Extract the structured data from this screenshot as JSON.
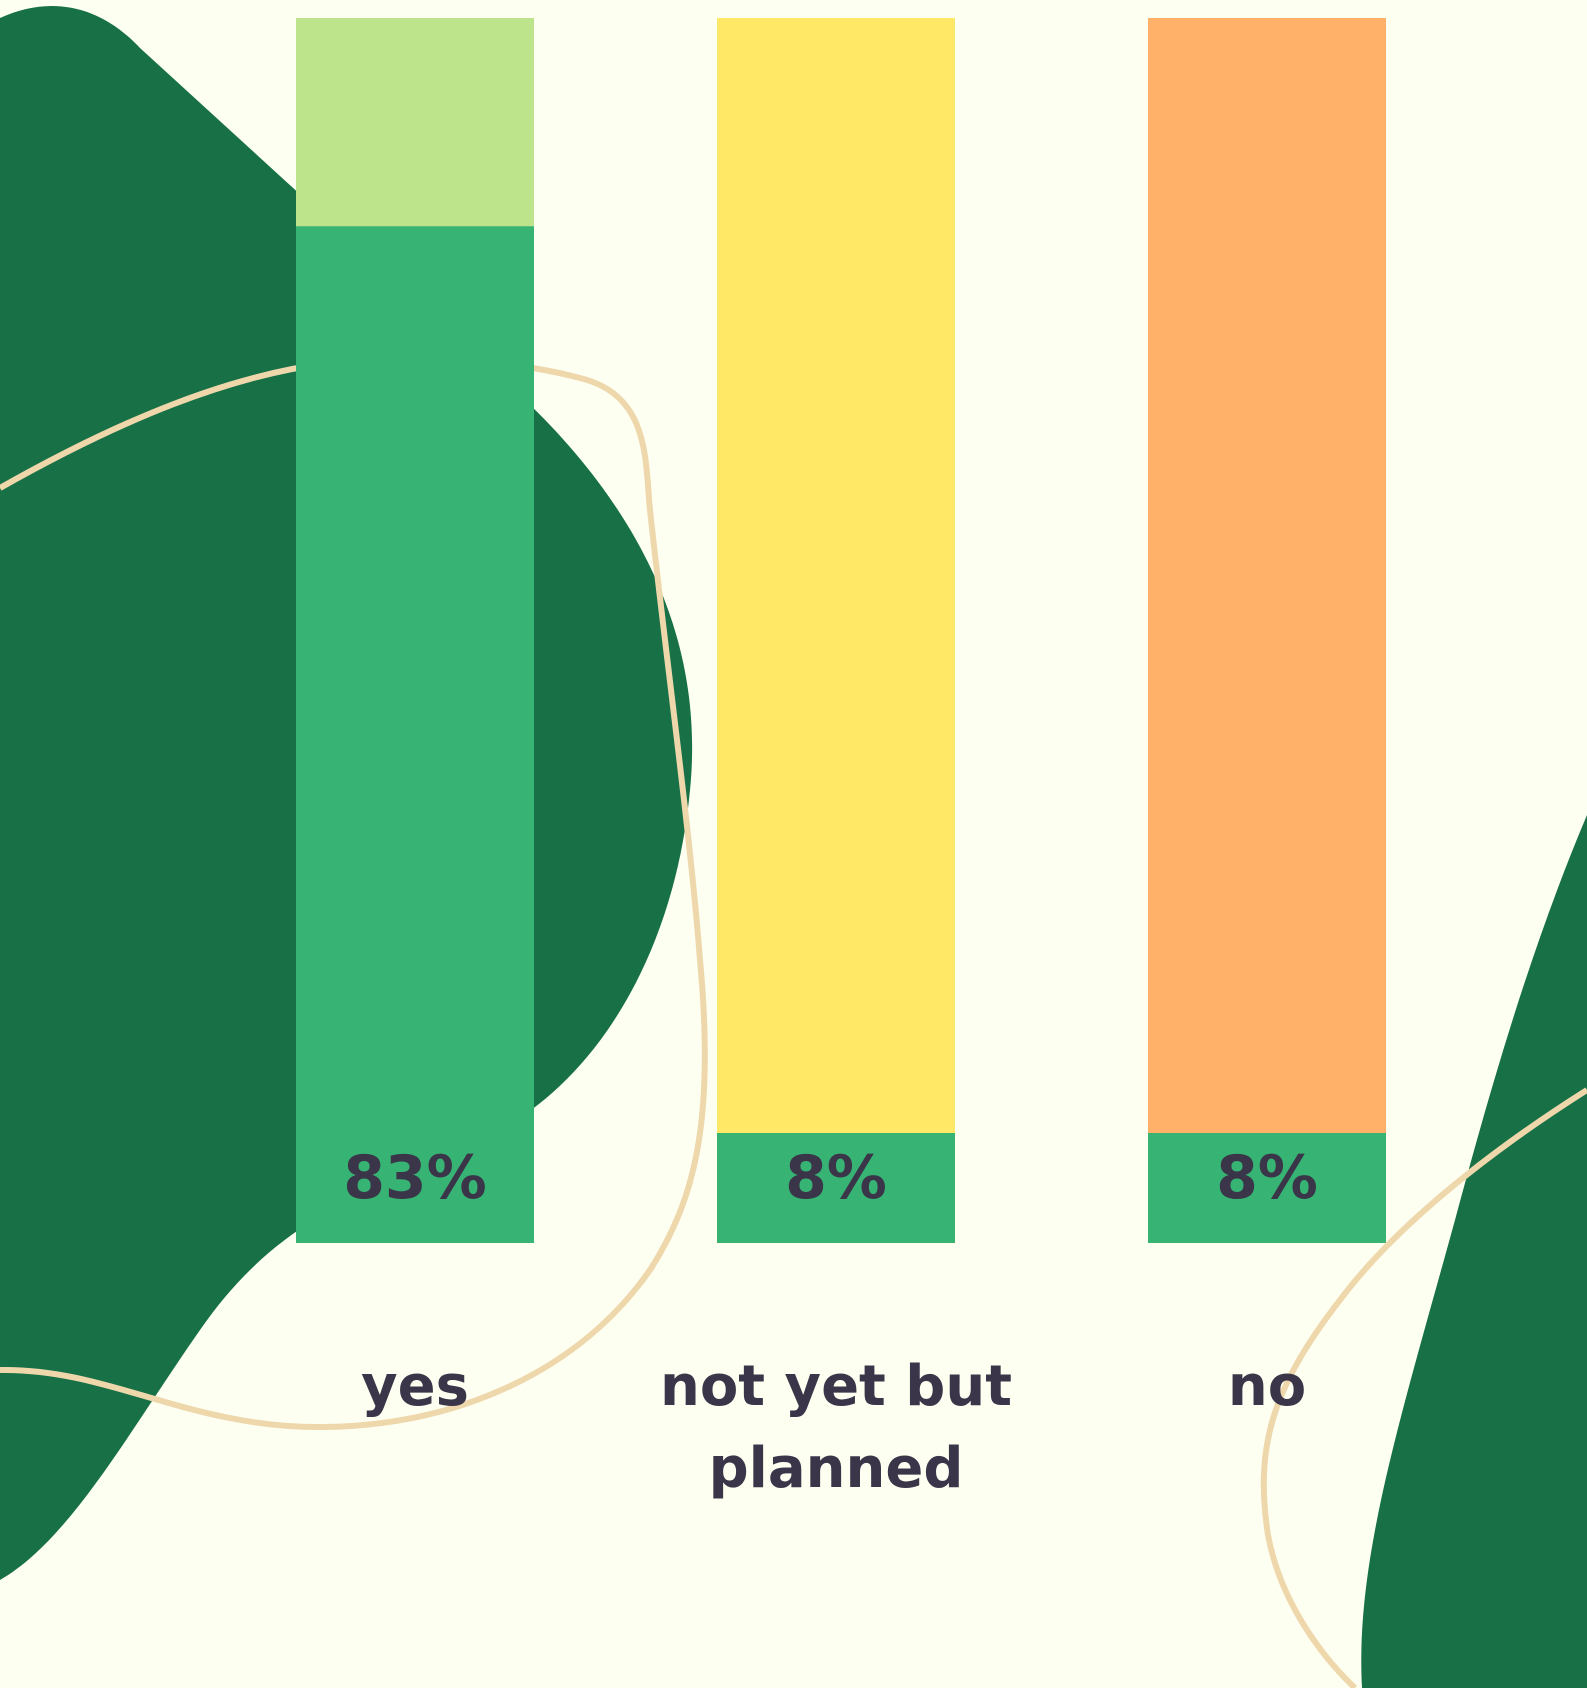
{
  "chart_data": {
    "type": "bar",
    "title": "",
    "xlabel": "",
    "ylabel": "",
    "ylim": [
      0,
      100
    ],
    "categories": [
      "yes",
      "not yet but planned",
      "no"
    ],
    "values": [
      83,
      8,
      8
    ],
    "value_labels": [
      "83%",
      "8%",
      "8%"
    ],
    "category_labels": [
      [
        "yes"
      ],
      [
        "not yet but",
        "planned"
      ],
      [
        "no"
      ]
    ],
    "grid": false,
    "legend": "none",
    "colors": {
      "value_fill": "#37b374",
      "track_fills": [
        "#bde48a",
        "#ffe866",
        "#ffb169"
      ],
      "label": "#3a3548",
      "background": "#fdfff1",
      "blob": "#187046",
      "line": "#efd7ac"
    }
  }
}
